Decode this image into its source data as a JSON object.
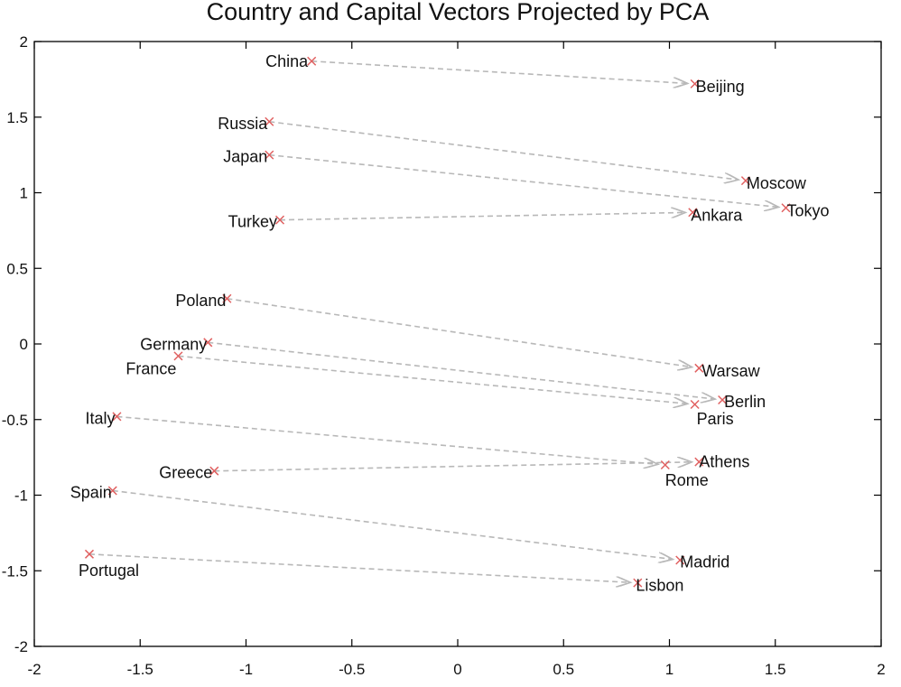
{
  "chart_data": {
    "type": "scatter",
    "title": "Country and Capital Vectors Projected by PCA",
    "xlabel": "",
    "ylabel": "",
    "xlim": [
      -2,
      2
    ],
    "ylim": [
      -2,
      2
    ],
    "x_ticks": [
      -2,
      -1.5,
      -1,
      -0.5,
      0,
      0.5,
      1,
      1.5,
      2
    ],
    "y_ticks": [
      -2,
      -1.5,
      -1,
      -0.5,
      0,
      0.5,
      1,
      1.5,
      2
    ],
    "x_tick_labels": [
      "-2",
      "-1.5",
      "-1",
      "-0.5",
      "0",
      "0.5",
      "1",
      "1.5",
      "2"
    ],
    "y_tick_labels": [
      "-2",
      "-1.5",
      "-1",
      "-0.5",
      "0",
      "0.5",
      "1",
      "1.5",
      "2"
    ],
    "grid": false,
    "legend": "none",
    "marker": "x",
    "colors": {
      "marker": "#e06060",
      "arrow": "#b8b8b8",
      "axis": "#000000",
      "text": "#111111"
    },
    "points": [
      {
        "label": "China",
        "x": -0.69,
        "y": 1.87
      },
      {
        "label": "Beijing",
        "x": 1.12,
        "y": 1.72
      },
      {
        "label": "Russia",
        "x": -0.89,
        "y": 1.47
      },
      {
        "label": "Moscow",
        "x": 1.36,
        "y": 1.08
      },
      {
        "label": "Japan",
        "x": -0.89,
        "y": 1.25
      },
      {
        "label": "Tokyo",
        "x": 1.55,
        "y": 0.9
      },
      {
        "label": "Turkey",
        "x": -0.84,
        "y": 0.82
      },
      {
        "label": "Ankara",
        "x": 1.11,
        "y": 0.87
      },
      {
        "label": "Poland",
        "x": -1.09,
        "y": 0.3
      },
      {
        "label": "Warsaw",
        "x": 1.14,
        "y": -0.16
      },
      {
        "label": "Germany",
        "x": -1.18,
        "y": 0.01
      },
      {
        "label": "Berlin",
        "x": 1.25,
        "y": -0.37
      },
      {
        "label": "France",
        "x": -1.32,
        "y": -0.08
      },
      {
        "label": "Paris",
        "x": 1.12,
        "y": -0.4
      },
      {
        "label": "Italy",
        "x": -1.61,
        "y": -0.48
      },
      {
        "label": "Rome",
        "x": 0.98,
        "y": -0.8
      },
      {
        "label": "Greece",
        "x": -1.15,
        "y": -0.84
      },
      {
        "label": "Athens",
        "x": 1.14,
        "y": -0.78
      },
      {
        "label": "Spain",
        "x": -1.63,
        "y": -0.97
      },
      {
        "label": "Madrid",
        "x": 1.05,
        "y": -1.43
      },
      {
        "label": "Portugal",
        "x": -1.74,
        "y": -1.39
      },
      {
        "label": "Lisbon",
        "x": 0.85,
        "y": -1.58
      }
    ],
    "arrows": [
      {
        "from": "China",
        "to": "Beijing"
      },
      {
        "from": "Russia",
        "to": "Moscow"
      },
      {
        "from": "Japan",
        "to": "Tokyo"
      },
      {
        "from": "Turkey",
        "to": "Ankara"
      },
      {
        "from": "Poland",
        "to": "Warsaw"
      },
      {
        "from": "Germany",
        "to": "Berlin"
      },
      {
        "from": "France",
        "to": "Paris"
      },
      {
        "from": "Italy",
        "to": "Rome"
      },
      {
        "from": "Greece",
        "to": "Athens"
      },
      {
        "from": "Spain",
        "to": "Madrid"
      },
      {
        "from": "Portugal",
        "to": "Lisbon"
      }
    ]
  }
}
